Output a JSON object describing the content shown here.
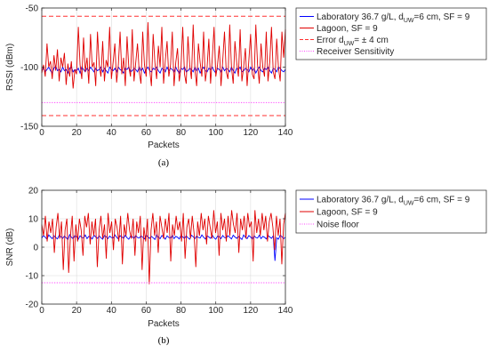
{
  "chart_data": [
    {
      "type": "line",
      "caption": "(a)",
      "xlabel": "Packets",
      "ylabel": "RSSI (dBm)",
      "xlim": [
        0,
        140
      ],
      "ylim": [
        -150,
        -50
      ],
      "xticks": [
        0,
        20,
        40,
        60,
        80,
        100,
        120,
        140
      ],
      "yticks": [
        -50,
        -100,
        -150
      ],
      "grid": true,
      "legend_position": "outside-right",
      "legend": [
        {
          "pre": "Laboratory 36.7 g/L, d",
          "sub": "UW",
          "post": "=6 cm, SF = 9"
        },
        {
          "pre": "Lagoon, SF = 9",
          "sub": "",
          "post": ""
        },
        {
          "pre": "Error d",
          "sub": "UW",
          "post": "= ± 4 cm"
        },
        {
          "pre": "Receiver Sensitivity",
          "sub": "",
          "post": ""
        }
      ],
      "series": [
        {
          "color": "#0000ff",
          "style": "solid",
          "values": [
            -103,
            -101,
            -104,
            -102,
            -100,
            -103,
            -105,
            -101,
            -99,
            -103,
            -102,
            -104,
            -100,
            -103,
            -102,
            -105,
            -101,
            -100,
            -104,
            -102,
            -103,
            -101,
            -105,
            -100,
            -102,
            -104,
            -101,
            -103,
            -100,
            -102,
            -104,
            -101,
            -103,
            -102,
            -100,
            -104,
            -101,
            -103,
            -105,
            -100,
            -102,
            -103,
            -101,
            -104,
            -100,
            -102,
            -103,
            -105,
            -101,
            -102,
            -100,
            -104,
            -103,
            -101,
            -102,
            -104,
            -100,
            -103,
            -101,
            -105,
            -102,
            -100,
            -103,
            -104,
            -101,
            -102,
            -100,
            -103,
            -105,
            -101,
            -102,
            -104,
            -100,
            -103,
            -101,
            -102,
            -104,
            -100,
            -103,
            -105,
            -101,
            -102,
            -100,
            -104,
            -103,
            -101,
            -102,
            -104,
            -100,
            -103,
            -101,
            -105,
            -102,
            -100,
            -103,
            -104,
            -101,
            -102,
            -100,
            -103,
            -105,
            -101,
            -102,
            -104,
            -100,
            -103,
            -101,
            -102,
            -104,
            -100,
            -103,
            -105,
            -101,
            -102,
            -100,
            -104,
            -103,
            -101,
            -102,
            -104,
            -100,
            -103,
            -101,
            -105,
            -102,
            -100,
            -103,
            -104,
            -101,
            -102,
            -100,
            -103,
            -105,
            -101,
            -102,
            -104,
            -100,
            -101,
            -103,
            -104,
            -102
          ]
        },
        {
          "color": "#e00000",
          "style": "solid",
          "values": [
            -105,
            -98,
            -108,
            -80,
            -100,
            -95,
            -110,
            -90,
            -103,
            -85,
            -112,
            -92,
            -100,
            -88,
            -115,
            -97,
            -108,
            -95,
            -118,
            -102,
            -106,
            -66,
            -98,
            -110,
            -75,
            -104,
            -92,
            -114,
            -72,
            -100,
            -96,
            -116,
            -70,
            -98,
            -108,
            -78,
            -112,
            -94,
            -100,
            -66,
            -110,
            -96,
            -80,
            -113,
            -98,
            -70,
            -106,
            -92,
            -116,
            -74,
            -100,
            -108,
            -68,
            -112,
            -96,
            -80,
            -104,
            -114,
            -70,
            -98,
            -108,
            -62,
            -102,
            -116,
            -72,
            -96,
            -110,
            -82,
            -100,
            -66,
            -114,
            -94,
            -78,
            -108,
            -98,
            -70,
            -116,
            -96,
            -84,
            -112,
            -100,
            -66,
            -106,
            -114,
            -74,
            -98,
            -110,
            -64,
            -102,
            -116,
            -80,
            -96,
            -108,
            -70,
            -112,
            -100,
            -76,
            -114,
            -92,
            -66,
            -108,
            -98,
            -82,
            -116,
            -94,
            -70,
            -104,
            -110,
            -64,
            -100,
            -114,
            -78,
            -96,
            -108,
            -68,
            -112,
            -100,
            -84,
            -116,
            -94,
            -72,
            -106,
            -110,
            -64,
            -98,
            -114,
            -80,
            -100,
            -108,
            -70,
            -112,
            -96,
            -66,
            -104,
            -110,
            -76,
            -100,
            -112,
            -70,
            -92,
            -68
          ]
        },
        {
          "color": "#ff3030",
          "style": "dashed",
          "values": [
            -57,
            -57
          ]
        },
        {
          "color": "#ff44ff",
          "style": "dotted",
          "values": [
            -130,
            -130
          ]
        },
        {
          "color": "#ff3030",
          "style": "dashed",
          "values": [
            -141,
            -141
          ]
        }
      ]
    },
    {
      "type": "line",
      "caption": "(b)",
      "xlabel": "Packets",
      "ylabel": "SNR (dB)",
      "xlim": [
        0,
        140
      ],
      "ylim": [
        -20,
        20
      ],
      "xticks": [
        0,
        20,
        40,
        60,
        80,
        100,
        120,
        140
      ],
      "yticks": [
        20,
        10,
        0,
        -10,
        -20
      ],
      "grid": true,
      "legend_position": "outside-right",
      "legend": [
        {
          "pre": "Laboratory 36.7 g/L, d",
          "sub": "UW",
          "post": "=6 cm, SF = 9"
        },
        {
          "pre": "Lagoon, SF = 9",
          "sub": "",
          "post": ""
        },
        {
          "pre": "Noise floor",
          "sub": "",
          "post": ""
        }
      ],
      "series": [
        {
          "color": "#0000ff",
          "style": "solid",
          "values": [
            3.2,
            4.1,
            3.5,
            2.8,
            4.3,
            3.6,
            3.0,
            4.0,
            3.4,
            2.9,
            4.2,
            3.7,
            3.1,
            3.9,
            3.3,
            2.7,
            4.4,
            3.5,
            3.0,
            4.1,
            3.6,
            2.8,
            4.0,
            3.4,
            3.2,
            4.3,
            3.0,
            3.8,
            3.5,
            2.9,
            4.2,
            3.6,
            3.1,
            4.0,
            3.3,
            2.8,
            4.1,
            3.7,
            3.0,
            3.9,
            3.4,
            3.2,
            4.3,
            3.5,
            2.9,
            4.0,
            3.6,
            3.1,
            4.2,
            3.3,
            2.8,
            3.9,
            3.7,
            3.0,
            4.1,
            3.4,
            3.2,
            4.0,
            3.5,
            2.9,
            4.2,
            3.6,
            3.1,
            3.8,
            3.3,
            2.7,
            4.3,
            3.5,
            3.0,
            4.1,
            3.6,
            2.8,
            4.0,
            3.4,
            3.2,
            4.2,
            3.0,
            3.8,
            3.5,
            2.9,
            4.1,
            3.6,
            3.1,
            4.0,
            3.3,
            2.8,
            4.2,
            3.7,
            3.0,
            3.9,
            3.4,
            3.2,
            4.3,
            3.5,
            2.9,
            4.0,
            3.6,
            3.1,
            4.2,
            3.3,
            2.8,
            3.9,
            3.7,
            3.0,
            4.1,
            3.4,
            3.2,
            4.0,
            3.5,
            2.9,
            4.2,
            3.6,
            3.1,
            3.8,
            3.3,
            2.7,
            4.3,
            3.5,
            3.0,
            4.1,
            3.6,
            2.8,
            4.0,
            3.4,
            3.2,
            4.2,
            3.0,
            3.8,
            3.5,
            2.9,
            4.1,
            3.6,
            3.1,
            4.0,
            -4.8,
            3.3,
            2.8,
            4.2,
            3.7,
            3.0,
            3.5
          ]
        },
        {
          "color": "#e00000",
          "style": "solid",
          "values": [
            8,
            4,
            11,
            2,
            9,
            5,
            10,
            -2,
            7,
            12,
            3,
            9,
            -8,
            6,
            10,
            -9,
            4,
            11,
            -5,
            8,
            2,
            10,
            6,
            -3,
            11,
            7,
            12,
            1,
            9,
            4,
            10,
            -7,
            6,
            11,
            3,
            8,
            -4,
            12,
            5,
            9,
            -1,
            10,
            7,
            2,
            11,
            -6,
            8,
            4,
            12,
            6,
            3,
            10,
            -3,
            9,
            5,
            11,
            -8,
            7,
            2,
            10,
            -13,
            6,
            12,
            4,
            9,
            -2,
            11,
            7,
            3,
            10,
            5,
            12,
            -5,
            8,
            4,
            11,
            6,
            9,
            2,
            12,
            -4,
            7,
            10,
            3,
            11,
            5,
            -7,
            9,
            4,
            12,
            6,
            10,
            1,
            11,
            7,
            3,
            13,
            5,
            9,
            -3,
            12,
            6,
            10,
            2,
            11,
            4,
            13,
            8,
            5,
            12,
            -2,
            10,
            6,
            11,
            3,
            12,
            7,
            9,
            -5,
            13,
            5,
            10,
            4,
            12,
            6,
            11,
            2,
            9,
            12,
            7,
            -1,
            11,
            4,
            10,
            -6,
            8,
            12
          ]
        },
        {
          "color": "#ff44ff",
          "style": "dotted",
          "values": [
            -12.5,
            -12.5
          ]
        }
      ]
    }
  ]
}
